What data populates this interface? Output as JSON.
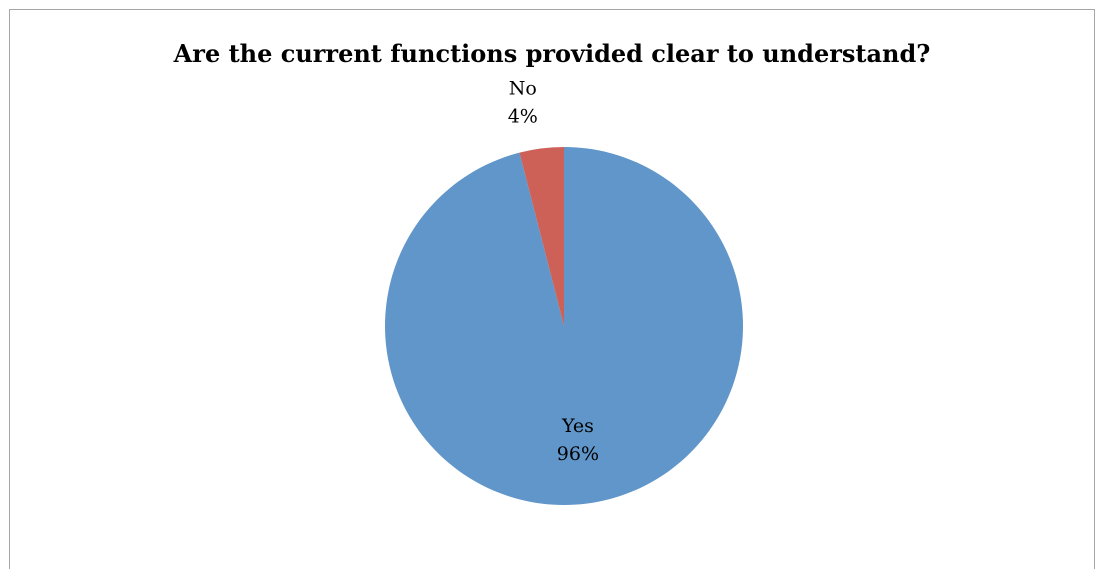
{
  "chart_data": {
    "type": "pie",
    "title": "Are the current functions provided clear to understand?",
    "slices": [
      {
        "label": "Yes",
        "value": 96,
        "value_label": "96%",
        "color": "#6096c9"
      },
      {
        "label": "No",
        "value": 4,
        "value_label": "4%",
        "color": "#cd6158"
      }
    ],
    "legend": "none",
    "data_labels": "category and percentage"
  }
}
